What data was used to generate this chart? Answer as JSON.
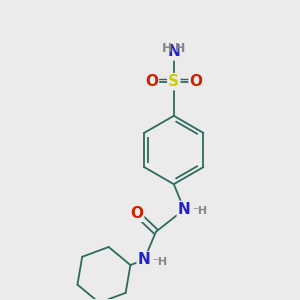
{
  "bg_color": "#ebebeb",
  "atom_colors": {
    "C": "#2d6b5e",
    "N": "#2222cc",
    "O": "#cc2200",
    "S": "#cccc00",
    "H": "#888888"
  },
  "bond_color": "#2d6b5e",
  "font_size_atom": 11,
  "font_size_H": 9
}
